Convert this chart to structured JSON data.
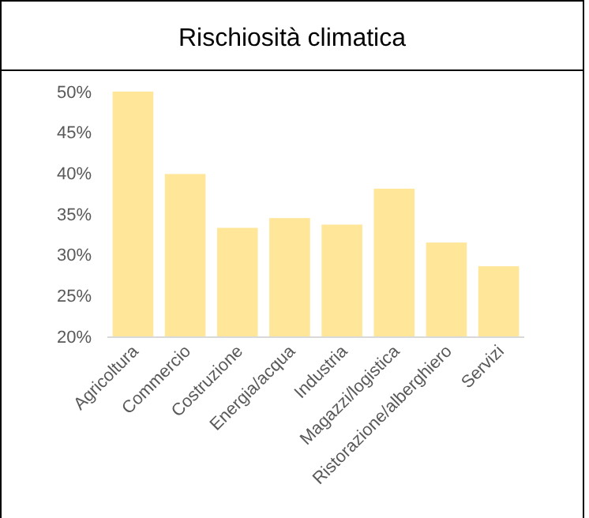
{
  "chart_data": {
    "type": "bar",
    "title": "Rischiosità climatica",
    "categories": [
      "Agricoltura",
      "Commercio",
      "Costruzione",
      "Energia/acqua",
      "Industria",
      "Magazzi/logistica",
      "Ristorazione/alberghiero",
      "Servizi"
    ],
    "values": [
      50,
      39.9,
      33.3,
      34.5,
      33.7,
      38.1,
      31.5,
      28.6
    ],
    "color": "#ffe699",
    "ylim": [
      20,
      50
    ],
    "yticks": [
      {
        "value": 20,
        "label": "20%"
      },
      {
        "value": 25,
        "label": "25%"
      },
      {
        "value": 30,
        "label": "30%"
      },
      {
        "value": 35,
        "label": "35%"
      },
      {
        "value": 40,
        "label": "40%"
      },
      {
        "value": 45,
        "label": "45%"
      },
      {
        "value": 50,
        "label": "50%"
      }
    ],
    "grid": false
  }
}
